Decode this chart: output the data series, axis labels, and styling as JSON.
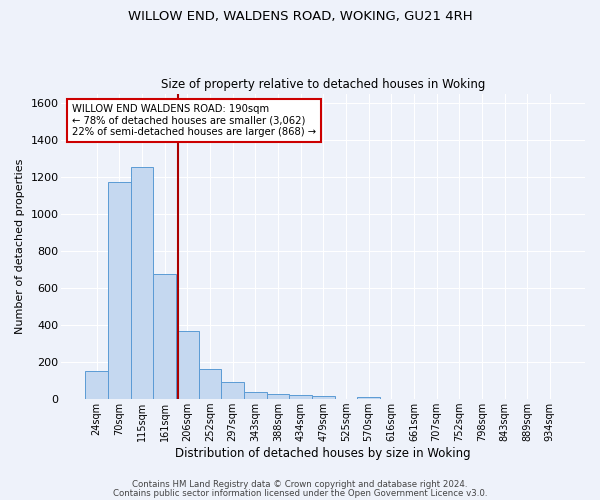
{
  "title_line1": "WILLOW END, WALDENS ROAD, WOKING, GU21 4RH",
  "title_line2": "Size of property relative to detached houses in Woking",
  "xlabel": "Distribution of detached houses by size in Woking",
  "ylabel": "Number of detached properties",
  "categories": [
    "24sqm",
    "70sqm",
    "115sqm",
    "161sqm",
    "206sqm",
    "252sqm",
    "297sqm",
    "343sqm",
    "388sqm",
    "434sqm",
    "479sqm",
    "525sqm",
    "570sqm",
    "616sqm",
    "661sqm",
    "707sqm",
    "752sqm",
    "798sqm",
    "843sqm",
    "889sqm",
    "934sqm"
  ],
  "values": [
    150,
    1175,
    1255,
    675,
    370,
    165,
    90,
    37,
    30,
    20,
    15,
    0,
    13,
    0,
    0,
    0,
    0,
    0,
    0,
    0,
    0
  ],
  "bar_color": "#c5d8f0",
  "bar_edge_color": "#5b9bd5",
  "background_color": "#eef2fa",
  "grid_color": "#ffffff",
  "red_line_x": 3.58,
  "property_label": "WILLOW END WALDENS ROAD: 190sqm",
  "annotation_line1": "← 78% of detached houses are smaller (3,062)",
  "annotation_line2": "22% of semi-detached houses are larger (868) →",
  "annotation_box_color": "#ffffff",
  "annotation_box_edge": "#cc0000",
  "red_line_color": "#aa0000",
  "ylim": [
    0,
    1650
  ],
  "yticks": [
    0,
    200,
    400,
    600,
    800,
    1000,
    1200,
    1400,
    1600
  ],
  "footer_line1": "Contains HM Land Registry data © Crown copyright and database right 2024.",
  "footer_line2": "Contains public sector information licensed under the Open Government Licence v3.0."
}
